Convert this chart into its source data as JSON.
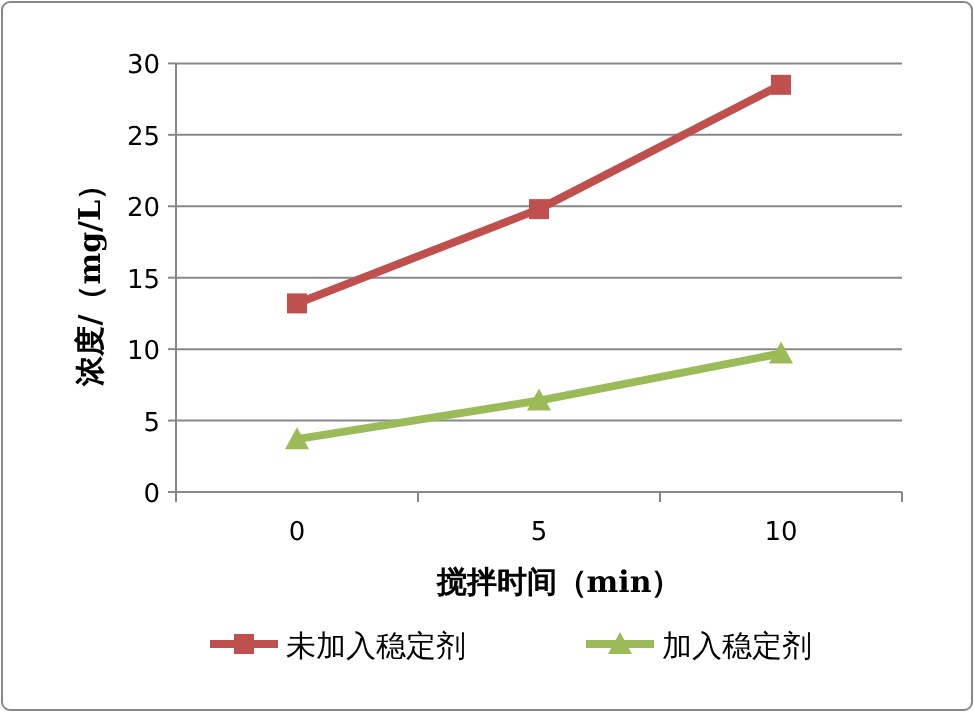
{
  "chart_data": {
    "type": "line",
    "xlabel": "搅拌时间（min）",
    "ylabel": "浓度/（mg/L）",
    "categories": [
      "0",
      "5",
      "10"
    ],
    "series": [
      {
        "name": "未加入稳定剂",
        "color": "#c0504d",
        "marker": "square",
        "values": [
          13.2,
          19.8,
          28.5
        ]
      },
      {
        "name": "加入稳定剂",
        "color": "#9bbb59",
        "marker": "triangle",
        "values": [
          3.7,
          6.4,
          9.7
        ]
      }
    ],
    "ylim": [
      0,
      30
    ],
    "yticks": [
      0,
      5,
      10,
      15,
      20,
      25,
      30
    ],
    "grid": "y",
    "legend": "bottom"
  }
}
